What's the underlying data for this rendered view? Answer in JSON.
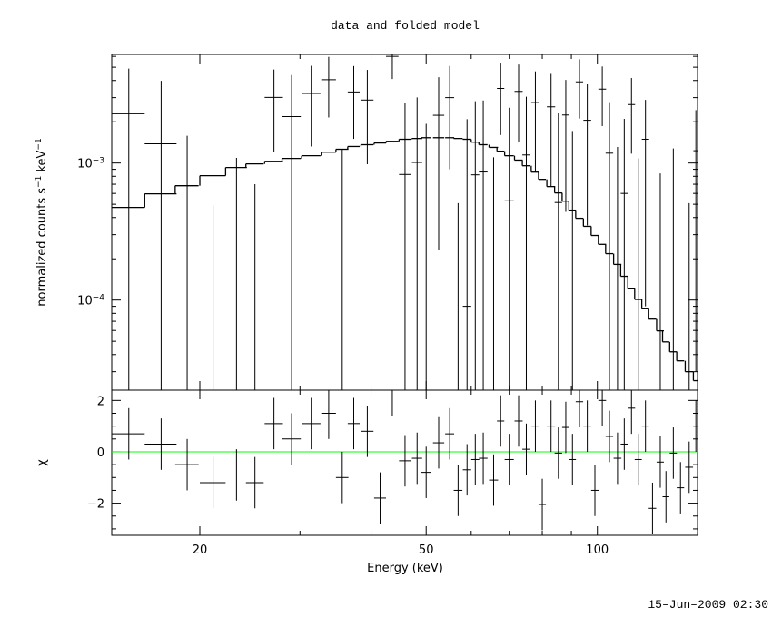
{
  "chart_data": [
    {
      "type": "errorbar",
      "title": "data and folded model",
      "ylabel_parts": [
        "normalized counts s",
        "−1",
        " keV",
        "−1"
      ],
      "xlog": true,
      "ylog": true,
      "xlim": [
        14,
        150
      ],
      "ylim": [
        2.2e-05,
        0.0062
      ],
      "yticks": [
        {
          "value": 0.0001,
          "label": "10",
          "exponent": "−4"
        },
        {
          "value": 0.001,
          "label": "10",
          "exponent": "−3"
        }
      ],
      "yminor": [
        3e-05,
        4e-05,
        5e-05,
        6e-05,
        7e-05,
        8e-05,
        9e-05,
        0.0002,
        0.0003,
        0.0004,
        0.0005,
        0.0006,
        0.0007,
        0.0008,
        0.0009,
        0.002,
        0.003,
        0.004,
        0.005,
        0.006
      ],
      "xticks": [
        20,
        50,
        100
      ],
      "xminor": [
        30,
        40,
        60,
        70,
        80,
        90
      ],
      "color": "#000000",
      "model_color": "#000000",
      "x": [
        15.0,
        17.1,
        19.0,
        21.1,
        23.2,
        25.0,
        27.0,
        29.0,
        31.4,
        33.7,
        35.6,
        37.3,
        39.4,
        41.5,
        43.6,
        45.9,
        48.2,
        50.0,
        52.6,
        55.0,
        56.9,
        59.0,
        61.0,
        63.0,
        65.7,
        67.6,
        70.0,
        72.7,
        75.0,
        77.8,
        80.0,
        82.9,
        85.4,
        88.0,
        90.4,
        93.0,
        96.0,
        99.0,
        102,
        105,
        108.5,
        111.5,
        114.8,
        118,
        121.5,
        125,
        129,
        132,
        136,
        140,
        145,
        149
      ],
      "xerr": [
        1.0,
        1.1,
        0.9,
        1.1,
        1.0,
        0.9,
        1.0,
        1.1,
        1.2,
        1.0,
        0.9,
        0.9,
        1.0,
        1.0,
        1.1,
        1.1,
        1.0,
        1.0,
        1.2,
        1.0,
        1.0,
        1.0,
        1.0,
        1.1,
        1.2,
        1.0,
        1.3,
        1.2,
        1.2,
        1.3,
        1.2,
        1.4,
        1.3,
        1.3,
        1.3,
        1.4,
        1.5,
        1.5,
        1.6,
        1.6,
        1.7,
        1.6,
        1.7,
        1.7,
        1.8,
        1.9,
        1.9,
        1.8,
        2.0,
        2.1,
        2.3,
        1.5
      ],
      "values": [
        0.00229,
        0.00138,
        -0.00022,
        -0.00111,
        -0.00051,
        -0.0007,
        0.00301,
        0.00218,
        0.00322,
        0.00405,
        -0.00054,
        0.0033,
        0.00288,
        -0.00184,
        0.006,
        0.000825,
        0.00101,
        -7e-05,
        0.00223,
        0.003,
        -0.00149,
        9e-05,
        0.00082,
        0.00086,
        -0.0009,
        0.0035,
        0.00053,
        0.00333,
        0.001145,
        0.00276,
        -0.00314,
        0.00257,
        0.000515,
        0.00224,
        -8.7e-05,
        0.00391,
        0.00205,
        -0.00225,
        0.00346,
        0.00118,
        -0.00019,
        0.0006,
        0.00267,
        -0.00032,
        0.00149,
        -0.00301,
        -0.00046,
        -0.00223,
        -2.3e-05,
        -0.00164,
        -0.00069,
        0.00123
      ],
      "errors": [
        0.0026,
        0.0026,
        0.0018,
        0.0016,
        0.0016,
        0.0014,
        0.0018,
        0.0022,
        0.0019,
        0.0019,
        0.0018,
        0.0018,
        0.0019,
        0.0018,
        0.0019,
        0.0019,
        0.002,
        0.002,
        0.002,
        0.0021,
        0.002,
        0.002,
        0.002,
        0.002,
        0.002,
        0.0019,
        0.002,
        0.0019,
        0.0019,
        0.0019,
        0.0019,
        0.0019,
        0.0018,
        0.0018,
        0.0018,
        0.0018,
        0.0017,
        0.0017,
        0.0016,
        0.0016,
        0.0015,
        0.0015,
        0.0015,
        0.0014,
        0.0014,
        0.0014,
        0.0013,
        0.0013,
        0.0013,
        0.0012,
        0.0012,
        0.0012
      ],
      "model": [
        0.000474,
        0.000596,
        0.000683,
        0.000808,
        0.000927,
        0.000985,
        0.00103,
        0.00108,
        0.00113,
        0.0012,
        0.00126,
        0.00132,
        0.00136,
        0.0014,
        0.00144,
        0.00149,
        0.00151,
        0.00153,
        0.00153,
        0.00153,
        0.00151,
        0.00149,
        0.00142,
        0.00136,
        0.0013,
        0.00122,
        0.00113,
        0.00105,
        0.000955,
        0.000858,
        0.00076,
        0.000673,
        0.000605,
        0.000527,
        0.000453,
        0.000395,
        0.000345,
        0.000296,
        0.000255,
        0.000218,
        0.000182,
        0.000149,
        0.000122,
        0.000101,
        8.72e-05,
        7.26e-05,
        5.96e-05,
        4.95e-05,
        4.19e-05,
        3.6e-05,
        3e-05,
        2.58e-05
      ]
    },
    {
      "type": "errorbar",
      "ylabel": "χ",
      "xlabel": "Energy (keV)",
      "xlog": true,
      "ylog": false,
      "xlim": [
        14,
        150
      ],
      "ylim": [
        -3.25,
        2.4
      ],
      "xticks": [
        20,
        50,
        100
      ],
      "xminor": [
        30,
        40,
        60,
        70,
        80,
        90
      ],
      "yticks": [
        {
          "value": -2,
          "label": "−2"
        },
        0,
        2
      ],
      "yminor": [
        -3,
        -2.5,
        -1.5,
        -1,
        -0.5,
        0.5,
        1,
        1.5
      ],
      "color": "#000000",
      "reference_line": 0,
      "reference_color": "#00ff00",
      "values": [
        0.7,
        0.3,
        -0.5,
        -1.2,
        -0.9,
        -1.2,
        1.1,
        0.5,
        1.1,
        1.5,
        -1.0,
        1.1,
        0.8,
        -1.8,
        2.4,
        -0.35,
        -0.25,
        -0.8,
        0.35,
        0.7,
        -1.5,
        -0.7,
        -0.3,
        -0.25,
        -1.1,
        1.2,
        -0.3,
        1.2,
        0.1,
        1.0,
        -2.05,
        1.0,
        -0.05,
        0.95,
        -0.3,
        1.95,
        1.0,
        -1.5,
        2.0,
        0.6,
        -0.25,
        0.3,
        1.7,
        -0.3,
        1.0,
        -2.2,
        -0.4,
        -1.75,
        -0.05,
        -1.4,
        -0.6,
        1.0
      ],
      "errors": [
        1,
        1,
        1,
        1,
        1,
        1,
        1,
        1,
        1,
        1,
        1,
        1,
        1,
        1,
        1,
        1,
        1,
        1,
        1,
        1,
        1,
        1,
        1,
        1,
        1,
        1,
        1,
        1,
        1,
        1,
        1,
        1,
        1,
        1,
        1,
        1,
        1,
        1,
        1,
        1,
        1,
        1,
        1,
        1,
        1,
        1,
        1,
        1,
        1,
        1,
        1,
        1
      ]
    }
  ],
  "timestamp": "15–Jun–2009 02:30"
}
